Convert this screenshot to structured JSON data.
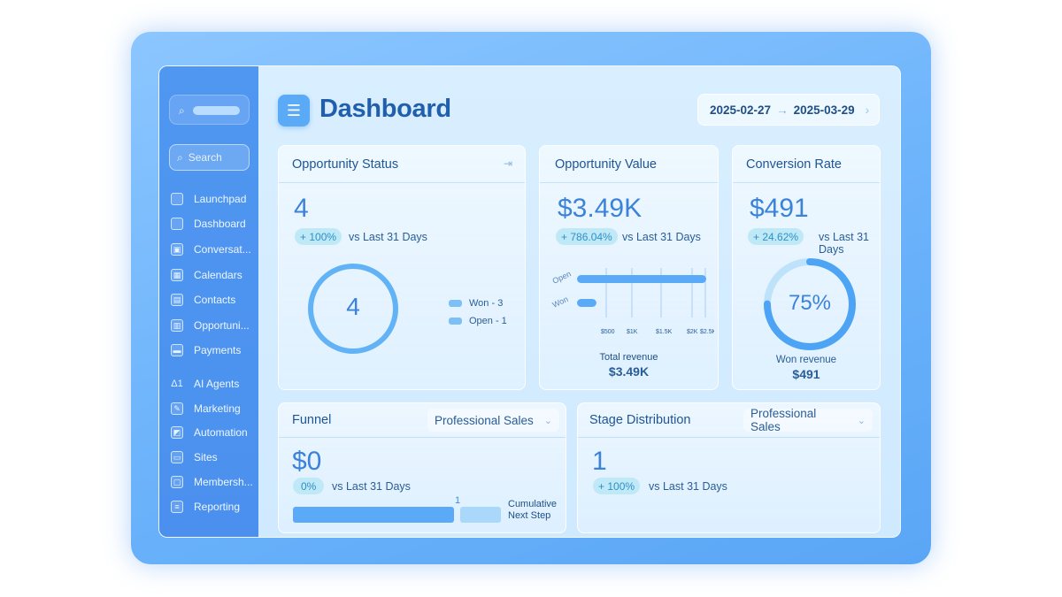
{
  "sidebar": {
    "search_placeholder": "Search",
    "items": [
      {
        "label": "Launchpad",
        "icon": "square-icon"
      },
      {
        "label": "Dashboard",
        "icon": "square-icon"
      },
      {
        "label": "Conversat...",
        "icon": "chat-icon"
      },
      {
        "label": "Calendars",
        "icon": "calendar-icon"
      },
      {
        "label": "Contacts",
        "icon": "contacts-icon"
      },
      {
        "label": "Opportuni...",
        "icon": "opportunities-icon"
      },
      {
        "label": "Payments",
        "icon": "payments-icon"
      },
      {
        "label": "AI Agents",
        "icon": "ai-agents-icon",
        "glyph": "Δ1"
      },
      {
        "label": "Marketing",
        "icon": "pencil-icon"
      },
      {
        "label": "Automation",
        "icon": "automation-icon"
      },
      {
        "label": "Sites",
        "icon": "sites-icon"
      },
      {
        "label": "Membersh...",
        "icon": "membership-icon"
      },
      {
        "label": "Reporting",
        "icon": "reporting-icon"
      }
    ]
  },
  "header": {
    "title": "Dashboard",
    "date_start": "2025-02-27",
    "date_arrow": "→",
    "date_end": "2025-03-29"
  },
  "cards": {
    "opportunity_status": {
      "title": "Opportunity Status",
      "value": "4",
      "badge": "+ 100%",
      "vs": "vs Last 31 Days",
      "donut_value": "4",
      "legend": [
        "Won - 3",
        "Open - 1"
      ]
    },
    "opportunity_value": {
      "title": "Opportunity Value",
      "value": "$3.49K",
      "badge": "+ 786.04%",
      "vs": "vs Last 31 Days",
      "total_label": "Total revenue",
      "total_value": "$3.49K"
    },
    "conversion_rate": {
      "title": "Conversion Rate",
      "value": "$491",
      "badge": "+ 24.62%",
      "vs": "vs Last 31 Days",
      "donut_value": "75%",
      "donut_fraction": 0.75,
      "won_label": "Won revenue",
      "won_value": "$491"
    },
    "funnel": {
      "title": "Funnel",
      "select": "Professional Sales",
      "value": "$0",
      "badge": "0%",
      "vs": "vs Last 31 Days",
      "bar_label": "1",
      "cumulative_line1": "Cumulative",
      "cumulative_line2": "Next Step"
    },
    "stage_distribution": {
      "title": "Stage Distribution",
      "select": "Professional Sales",
      "value": "1",
      "badge": "+ 100%",
      "vs": "vs Last 31 Days"
    }
  },
  "chart_data": {
    "type": "bar",
    "orientation": "horizontal",
    "categories": [
      "Open",
      "Won"
    ],
    "values": [
      3000,
      450
    ],
    "x_ticks": [
      "$500",
      "$1K",
      "$1.5K",
      "$2K",
      "$2.5K"
    ],
    "colors": {
      "bar": "#5aaaf7",
      "accent": "#3b82d9"
    }
  }
}
